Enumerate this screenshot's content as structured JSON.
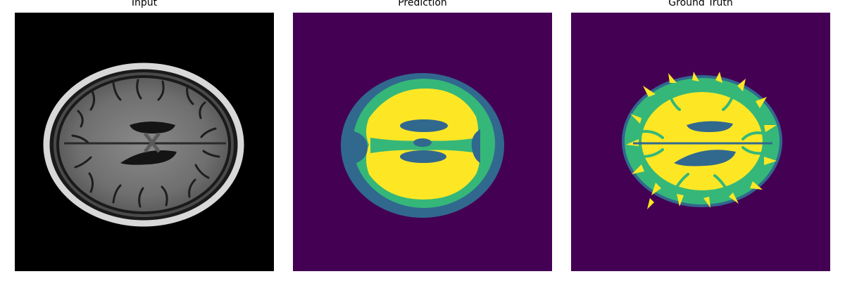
{
  "panels": [
    {
      "title": "Input"
    },
    {
      "title": "Prediction"
    },
    {
      "title": "Ground Truth"
    }
  ],
  "colors": {
    "input_background": "#000000",
    "background_class": "#440154",
    "csf_class": "#31688e",
    "gray_matter_class": "#35b779",
    "white_matter_class": "#fde725"
  }
}
